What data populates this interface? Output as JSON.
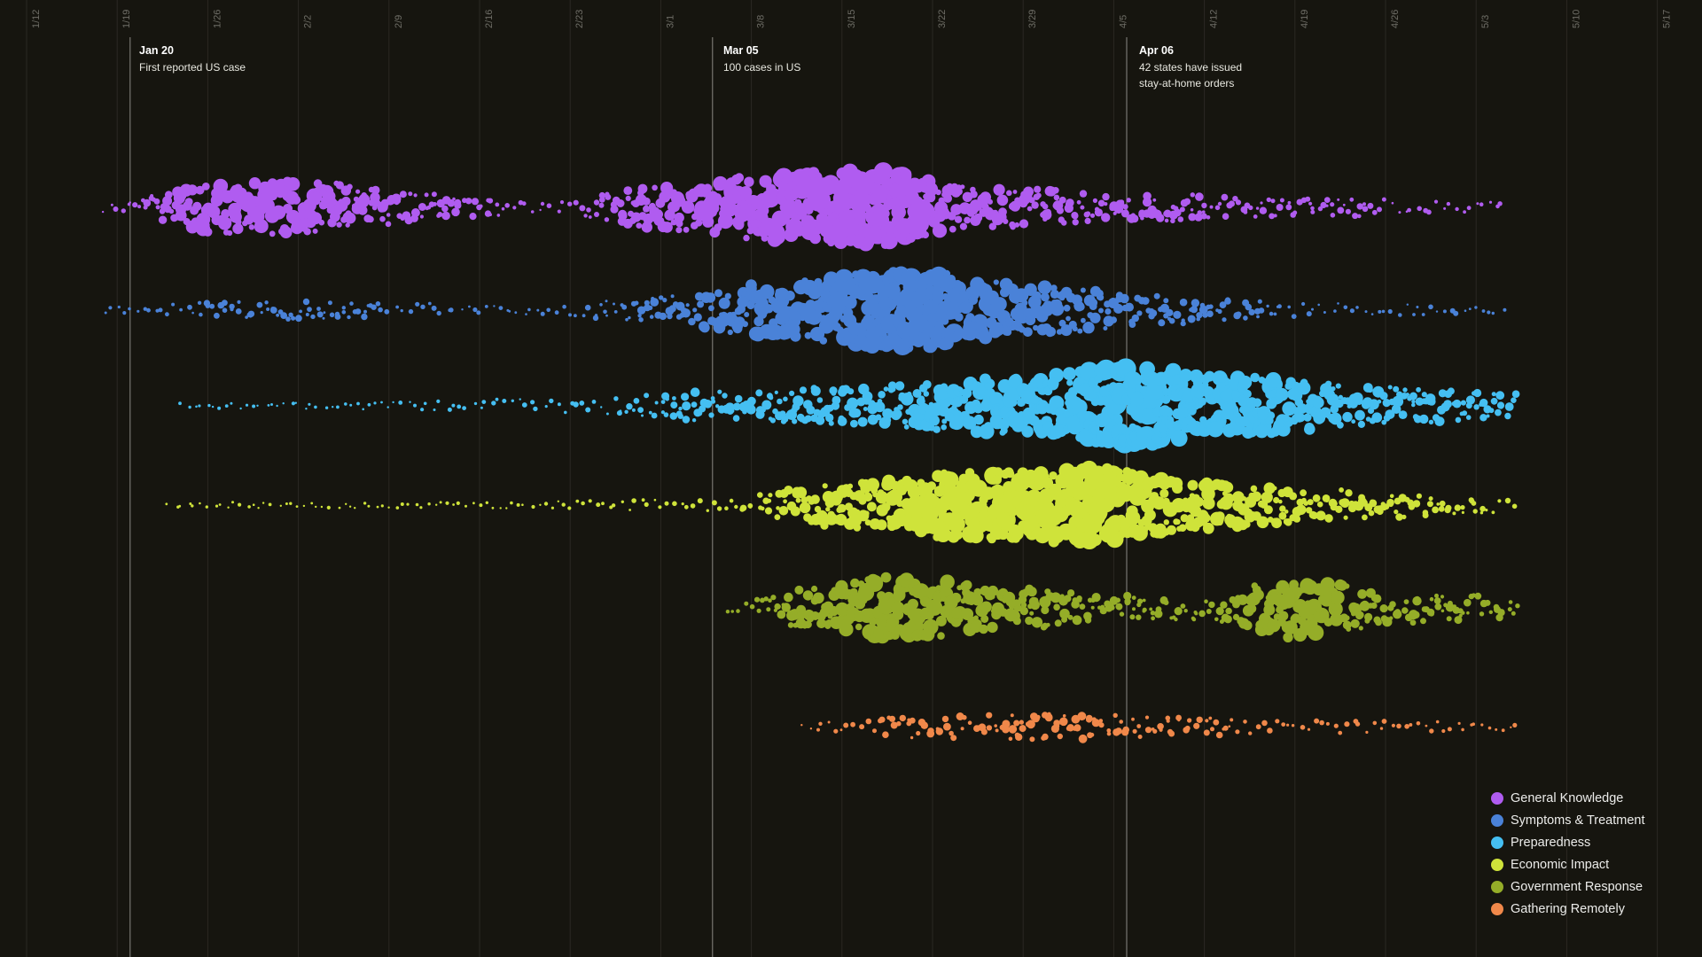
{
  "chart_data": {
    "type": "scatter",
    "title": "",
    "xlabel": "",
    "ylabel": "",
    "x_ticks": [
      "1/12",
      "1/19",
      "1/26",
      "2/2",
      "2/9",
      "2/16",
      "2/23",
      "3/1",
      "3/8",
      "3/15",
      "3/22",
      "3/29",
      "4/5",
      "4/12",
      "4/19",
      "4/26",
      "5/3",
      "5/10",
      "5/17"
    ],
    "x_range": [
      "2020-01-12",
      "2020-05-17"
    ],
    "grid": true,
    "legend_position": "bottom-right",
    "annotations": [
      {
        "date": "2020-01-20",
        "label": "Jan 20",
        "text": "First reported US case"
      },
      {
        "date": "2020-03-05",
        "label": "Mar 05",
        "text": "100 cases in US"
      },
      {
        "date": "2020-04-06",
        "label": "Apr 06",
        "text": "42 states have issued\nstay-at-home orders"
      }
    ],
    "series": [
      {
        "name": "General Knowledge",
        "color": "#b05cf0",
        "intensity": [
          [
            "2020-01-18",
            0.1
          ],
          [
            "2020-01-27",
            0.65
          ],
          [
            "2020-02-03",
            0.65
          ],
          [
            "2020-02-12",
            0.3
          ],
          [
            "2020-02-22",
            0.1
          ],
          [
            "2020-03-01",
            0.55
          ],
          [
            "2020-03-12",
            0.9
          ],
          [
            "2020-03-18",
            0.95
          ],
          [
            "2020-03-25",
            0.5
          ],
          [
            "2020-04-05",
            0.35
          ],
          [
            "2020-04-20",
            0.2
          ],
          [
            "2020-05-05",
            0.08
          ]
        ]
      },
      {
        "name": "Symptoms & Treatment",
        "color": "#4a82d8",
        "intensity": [
          [
            "2020-01-18",
            0.02
          ],
          [
            "2020-01-27",
            0.18
          ],
          [
            "2020-02-03",
            0.2
          ],
          [
            "2020-02-20",
            0.05
          ],
          [
            "2020-03-01",
            0.3
          ],
          [
            "2020-03-10",
            0.7
          ],
          [
            "2020-03-20",
            1.0
          ],
          [
            "2020-03-30",
            0.6
          ],
          [
            "2020-04-08",
            0.35
          ],
          [
            "2020-04-20",
            0.15
          ],
          [
            "2020-05-05",
            0.1
          ]
        ]
      },
      {
        "name": "Preparedness",
        "color": "#45bff2",
        "intensity": [
          [
            "2020-01-24",
            0.02
          ],
          [
            "2020-02-02",
            0.02
          ],
          [
            "2020-02-25",
            0.15
          ],
          [
            "2020-03-05",
            0.35
          ],
          [
            "2020-03-15",
            0.45
          ],
          [
            "2020-03-28",
            0.7
          ],
          [
            "2020-04-06",
            1.0
          ],
          [
            "2020-04-15",
            0.75
          ],
          [
            "2020-04-25",
            0.45
          ],
          [
            "2020-05-06",
            0.3
          ]
        ]
      },
      {
        "name": "Economic Impact",
        "color": "#cfe33a",
        "intensity": [
          [
            "2020-01-23",
            0.02
          ],
          [
            "2020-02-15",
            0.02
          ],
          [
            "2020-03-05",
            0.1
          ],
          [
            "2020-03-15",
            0.55
          ],
          [
            "2020-03-25",
            0.85
          ],
          [
            "2020-04-03",
            0.95
          ],
          [
            "2020-04-12",
            0.6
          ],
          [
            "2020-04-22",
            0.35
          ],
          [
            "2020-05-06",
            0.15
          ]
        ]
      },
      {
        "name": "Government Response",
        "color": "#95ad28",
        "intensity": [
          [
            "2020-03-06",
            0.05
          ],
          [
            "2020-03-12",
            0.45
          ],
          [
            "2020-03-19",
            0.8
          ],
          [
            "2020-03-27",
            0.55
          ],
          [
            "2020-04-05",
            0.3
          ],
          [
            "2020-04-12",
            0.25
          ],
          [
            "2020-04-19",
            0.75
          ],
          [
            "2020-04-27",
            0.35
          ],
          [
            "2020-05-06",
            0.25
          ]
        ]
      },
      {
        "name": "Gathering Remotely",
        "color": "#f0884a",
        "intensity": [
          [
            "2020-03-12",
            0.05
          ],
          [
            "2020-03-22",
            0.25
          ],
          [
            "2020-04-01",
            0.3
          ],
          [
            "2020-04-10",
            0.2
          ],
          [
            "2020-04-20",
            0.12
          ],
          [
            "2020-05-06",
            0.06
          ]
        ]
      }
    ]
  }
}
